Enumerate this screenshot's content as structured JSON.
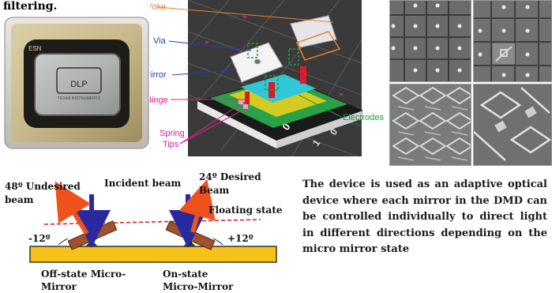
{
  "caption_top": "filtering.",
  "chip": {
    "logo_text": "DLP",
    "corner_text": "ESN",
    "small_text": "TEXAS INSTRUMENTS"
  },
  "dmd_diagram": {
    "labels": {
      "yoke": "Yoke",
      "via": "Via",
      "mirror": "Mirror",
      "hinge": "Hinge",
      "spring_tips_line1": "Spring",
      "spring_tips_line2": "Tips",
      "electrodes": "Electrodes"
    },
    "base_digits": [
      "0",
      "1",
      "0",
      "1",
      "0"
    ],
    "colors": {
      "yoke": "#f07f2a",
      "hinge": "#e0208a",
      "electrodes": "#1a9a3a",
      "label_blue": "#1f3fbf"
    }
  },
  "schematic": {
    "undesired_beam_line1": "48º Undesired",
    "undesired_beam_line2": "beam",
    "incident_beam": "Incident beam",
    "desired_beam_line1": "24º Desired",
    "desired_beam_line2": "Beam",
    "floating_state": "Floating state",
    "left_angle": "-12º",
    "right_angle": "+12º",
    "off_state_line1": "Off-state Micro-",
    "off_state_line2": "Mirror",
    "on_state_line1": "On-state",
    "on_state_line2": "Micro-Mirror"
  },
  "paragraph": "The device is used as an adaptive optical device where each mirror in the DMD can be controlled individually to direct light in different directions depending on the micro mirror state"
}
